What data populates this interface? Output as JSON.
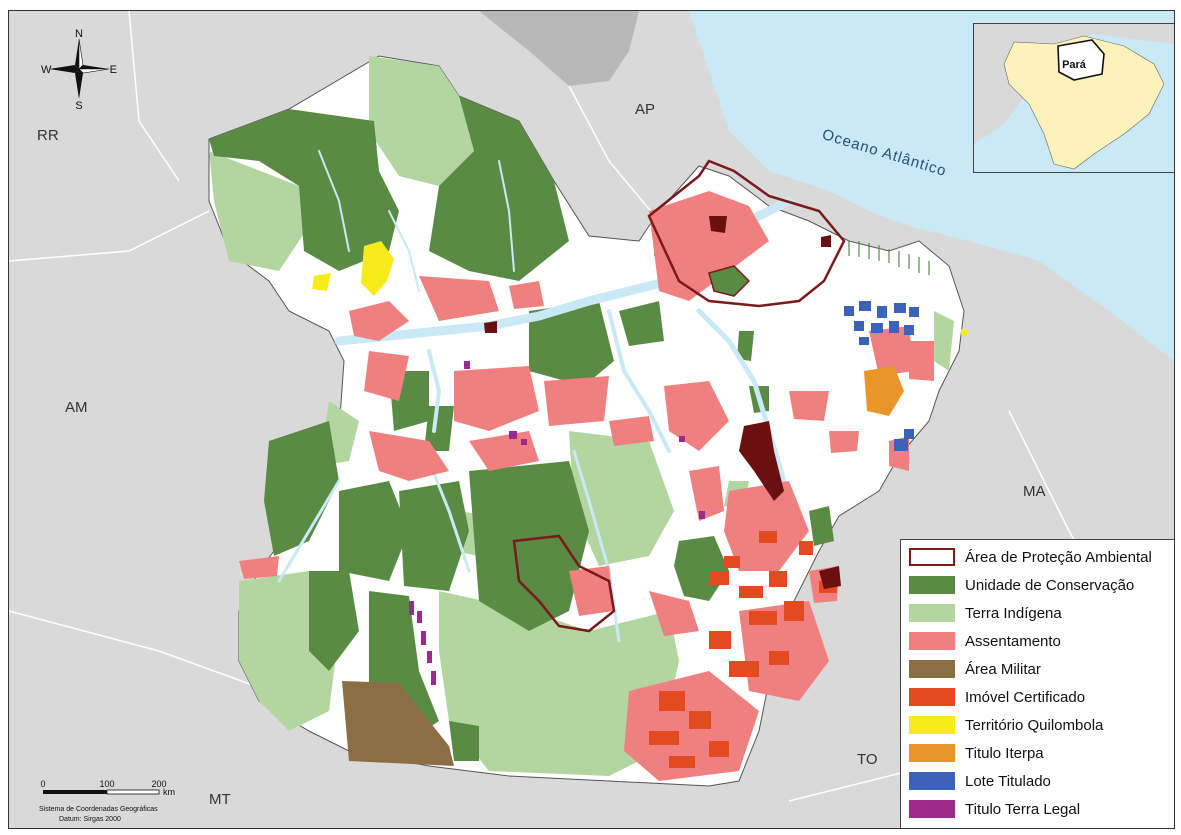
{
  "colors": {
    "ocean": "#c9e9f6",
    "neighbor_land": "#d9d9d9",
    "foreign_land": "#b8b8b8",
    "para_base": "#ffffff",
    "river": "#c9e9f6",
    "apa_outline": "#7b1a1a",
    "unidade_conservacao": "#5a8b45",
    "terra_indigena": "#b3d6a0",
    "assentamento": "#f08080",
    "area_militar": "#8b6e44",
    "imovel_certificado": "#e34a1f",
    "territorio_quilombola": "#f7ec1a",
    "titulo_iterpa": "#e8962a",
    "lote_titulado": "#3c63b8",
    "titulo_terra_legal": "#9a2a8c"
  },
  "neighbor_labels": {
    "rr": "RR",
    "ap": "AP",
    "am": "AM",
    "ma": "MA",
    "to": "TO",
    "mt": "MT"
  },
  "ocean_label": "Oceano  Atlântico",
  "compass": {
    "n": "N",
    "s": "S",
    "e": "E",
    "w": "W"
  },
  "scale": {
    "ticks": [
      "0",
      "100",
      "200"
    ],
    "unit": "km",
    "note_line1": "Sistema de Coordenadas Geográficas",
    "note_line2": "Datum: Sirgas 2000"
  },
  "inset": {
    "label": "Pará"
  },
  "legend": [
    {
      "label": "Área de Proteção Ambiental",
      "type": "outline",
      "color": "#7b1a1a"
    },
    {
      "label": "Unidade de Conservação",
      "type": "fill",
      "color": "#5a8b45"
    },
    {
      "label": "Terra Indígena",
      "type": "fill",
      "color": "#b3d6a0"
    },
    {
      "label": "Assentamento",
      "type": "fill",
      "color": "#f08080"
    },
    {
      "label": "Área Militar",
      "type": "fill",
      "color": "#8b6e44"
    },
    {
      "label": "Imóvel Certificado",
      "type": "fill",
      "color": "#e34a1f"
    },
    {
      "label": "Território Quilombola",
      "type": "fill",
      "color": "#f7ec1a"
    },
    {
      "label": "Titulo Iterpa",
      "type": "fill",
      "color": "#e8962a"
    },
    {
      "label": "Lote Titulado",
      "type": "fill",
      "color": "#3c63b8"
    },
    {
      "label": "Titulo Terra Legal",
      "type": "fill",
      "color": "#9a2a8c"
    }
  ]
}
